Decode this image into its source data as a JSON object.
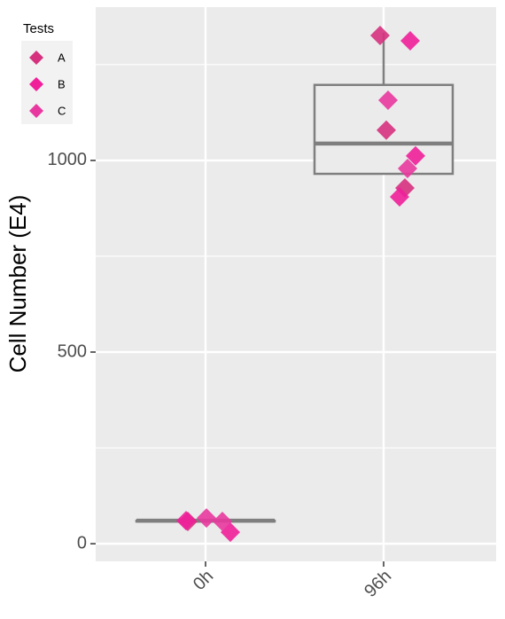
{
  "chart_data": {
    "type": "boxplot",
    "y_label": "Cell Number (E4)",
    "categories": [
      "0h",
      "96h"
    ],
    "boxes": [
      {
        "whisker_low": 58,
        "q1": 58,
        "median": 60,
        "q3": 60,
        "whisker_high": 62
      },
      {
        "whisker_low": 965,
        "q1": 965,
        "median": 1044,
        "q3": 1197,
        "whisker_high": 1333
      }
    ],
    "box_color": "#7f7f7f",
    "legend_title": "Tests",
    "legend_position": "top-left",
    "series": [
      {
        "name": "A",
        "color": "#d6317f",
        "points": [
          {
            "x": "0h",
            "value": 58
          },
          {
            "x": "96h",
            "value": 1326
          },
          {
            "x": "96h",
            "value": 1079
          },
          {
            "x": "96h",
            "value": 928
          }
        ]
      },
      {
        "name": "B",
        "color": "#f0209a",
        "points": [
          {
            "x": "0h",
            "value": 30
          },
          {
            "x": "0h",
            "value": 60
          },
          {
            "x": "96h",
            "value": 1312
          },
          {
            "x": "96h",
            "value": 1012
          },
          {
            "x": "96h",
            "value": 905
          }
        ]
      },
      {
        "name": "C",
        "color": "#e8389f",
        "points": [
          {
            "x": "0h",
            "value": 58
          },
          {
            "x": "0h",
            "value": 67
          },
          {
            "x": "96h",
            "value": 1157
          },
          {
            "x": "96h",
            "value": 979
          }
        ]
      }
    ],
    "ylim": [
      -46,
      1400
    ],
    "yticks": [
      0,
      500,
      1000
    ],
    "minor_yticks": [
      250,
      750,
      1250
    ],
    "grid": true
  }
}
